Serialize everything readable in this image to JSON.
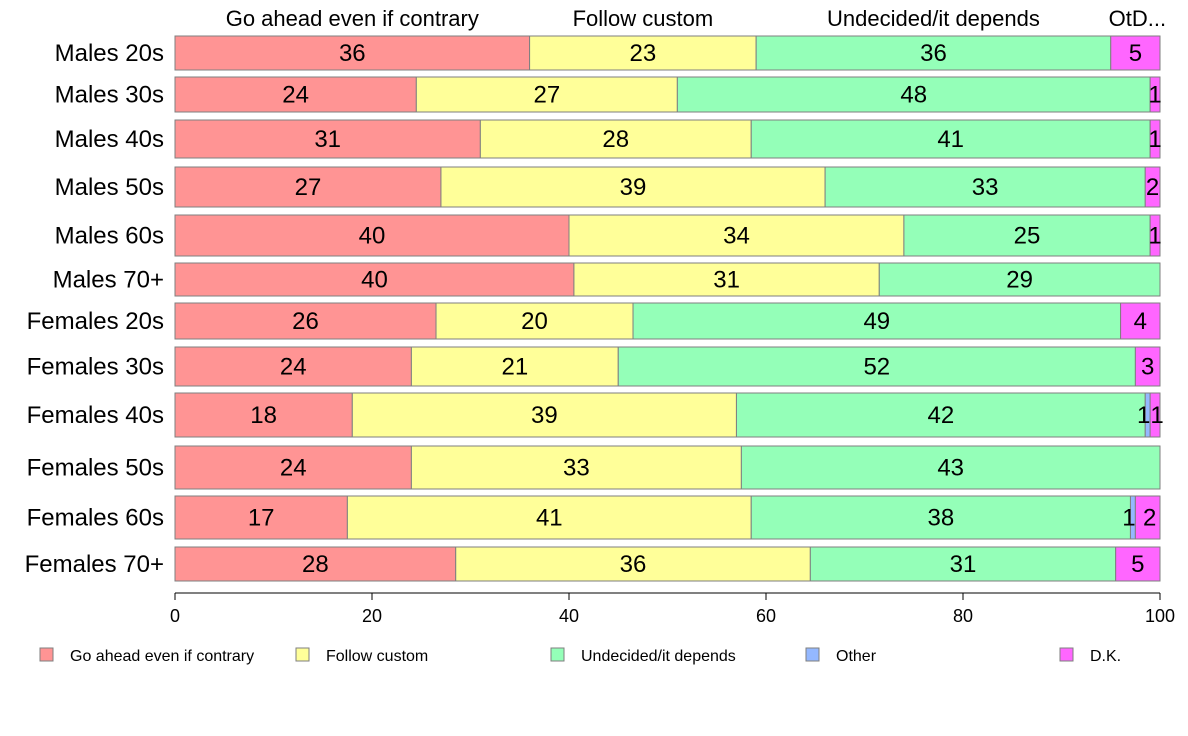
{
  "chart_data": {
    "type": "bar",
    "orientation": "horizontal",
    "stacked": true,
    "categories": [
      "Males 20s",
      "Males 30s",
      "Males 40s",
      "Males 50s",
      "Males 60s",
      "Males 70+",
      "Females 20s",
      "Females 30s",
      "Females 40s",
      "Females 50s",
      "Females 60s",
      "Females 70+"
    ],
    "series": [
      {
        "name": "Go ahead even if contrary",
        "color": "#ff9494",
        "values": [
          36,
          24.5,
          31,
          27,
          40,
          40.5,
          26.5,
          24,
          18,
          24,
          17.5,
          28.5
        ]
      },
      {
        "name": "Follow custom",
        "color": "#ffff99",
        "values": [
          23,
          26.5,
          27.5,
          39,
          34,
          31,
          20,
          21,
          39,
          33.5,
          41,
          36
        ]
      },
      {
        "name": "Undecided/it depends",
        "color": "#94ffb8",
        "values": [
          36,
          48,
          40.5,
          32.5,
          25,
          28.5,
          49.5,
          52.5,
          41.5,
          42.5,
          38.5,
          31
        ]
      },
      {
        "name": "Other",
        "color": "#94b8ff",
        "values": [
          0,
          0,
          0,
          0,
          0,
          0,
          0,
          0,
          0.5,
          0,
          0.5,
          0
        ]
      },
      {
        "name": "D.K.",
        "color": "#ff66ff",
        "values": [
          5,
          1,
          1,
          1.5,
          1,
          0,
          4,
          2.5,
          1,
          0,
          2.5,
          4.5
        ]
      }
    ],
    "data_labels": [
      [
        "36",
        "23",
        "36",
        "",
        "5"
      ],
      [
        "24",
        "27",
        "48",
        "",
        "1"
      ],
      [
        "31",
        "28",
        "41",
        "",
        "1"
      ],
      [
        "27",
        "39",
        "33",
        "",
        "2"
      ],
      [
        "40",
        "34",
        "25",
        "",
        "1"
      ],
      [
        "40",
        "31",
        "29",
        "",
        ""
      ],
      [
        "26",
        "20",
        "49",
        "",
        "4"
      ],
      [
        "24",
        "21",
        "52",
        "",
        "3"
      ],
      [
        "18",
        "39",
        "42",
        "1",
        "1"
      ],
      [
        "24",
        "33",
        "43",
        "",
        ""
      ],
      [
        "17",
        "41",
        "38",
        "1",
        "2"
      ],
      [
        "28",
        "36",
        "31",
        "",
        "5"
      ]
    ],
    "top_labels": [
      "Go ahead even if contrary",
      "Follow custom",
      "Undecided/it depends",
      "OtD..."
    ],
    "x_ticks": [
      "0",
      "20",
      "40",
      "60",
      "80",
      "100"
    ],
    "xlim": [
      0,
      100
    ],
    "grid": false,
    "legend_position": "bottom",
    "title": "",
    "xlabel": "",
    "ylabel": ""
  }
}
